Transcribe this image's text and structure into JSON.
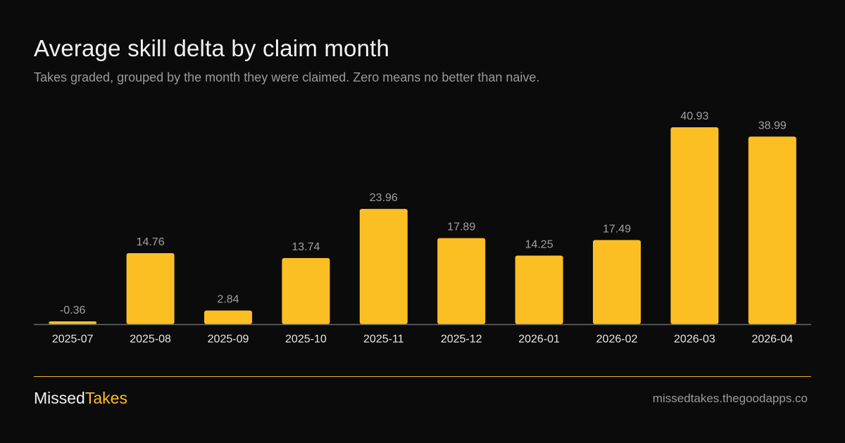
{
  "header": {
    "title": "Average skill delta by claim month",
    "subtitle": "Takes graded, grouped by the month they were claimed. Zero means no better than naive."
  },
  "chart_data": {
    "type": "bar",
    "title": "Average skill delta by claim month",
    "xlabel": "",
    "ylabel": "",
    "categories": [
      "2025-07",
      "2025-08",
      "2025-09",
      "2025-10",
      "2025-11",
      "2025-12",
      "2026-01",
      "2026-02",
      "2026-03",
      "2026-04"
    ],
    "values": [
      -0.36,
      14.76,
      2.84,
      13.74,
      23.96,
      17.89,
      14.25,
      17.49,
      40.93,
      38.99
    ],
    "value_labels": [
      "-0.36",
      "14.76",
      "2.84",
      "13.74",
      "23.96",
      "17.89",
      "14.25",
      "17.49",
      "40.93",
      "38.99"
    ],
    "ylim": [
      0,
      40.93
    ],
    "grid": false,
    "legend": "none",
    "colors": {
      "bar": "#fbbf24",
      "baseline": "#6b6b6b",
      "value_label": "#a0a0a0",
      "tick_label": "#e6e6e6"
    }
  },
  "footer": {
    "brand_first": "Missed",
    "brand_second": "Takes",
    "site": "missedtakes.thegoodapps.co",
    "accent_color": "#fbbf24"
  }
}
